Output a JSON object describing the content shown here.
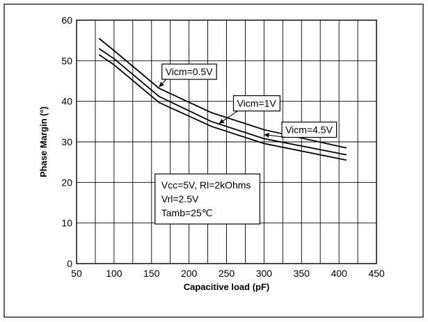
{
  "chart_data": {
    "type": "line",
    "xlabel": "Capacitive load (pF)",
    "ylabel": "Phase Margin (°)",
    "xlim": [
      50,
      450
    ],
    "ylim": [
      0,
      60
    ],
    "x_major_ticks": [
      50,
      100,
      150,
      200,
      250,
      300,
      350,
      400,
      450
    ],
    "y_major_ticks": [
      0,
      10,
      20,
      30,
      40,
      50,
      60
    ],
    "grid_x_step": 25,
    "grid_y_step": 10,
    "grid": true,
    "line_color": "#000000",
    "series": [
      {
        "name": "Vicm=0.5V",
        "points": [
          [
            80,
            55.5
          ],
          [
            100,
            52.5
          ],
          [
            160,
            43.2
          ],
          [
            230,
            37.2
          ],
          [
            300,
            33.0
          ],
          [
            410,
            28.5
          ]
        ],
        "label_anchor": [
          200,
          47.3
        ],
        "arrow_at": [
          160,
          43.5
        ]
      },
      {
        "name": "Vicm=1V",
        "points": [
          [
            80,
            53.0
          ],
          [
            100,
            50.5
          ],
          [
            160,
            41.2
          ],
          [
            230,
            35.0
          ],
          [
            300,
            30.8
          ],
          [
            410,
            26.8
          ]
        ],
        "label_anchor": [
          290,
          39.5
        ],
        "arrow_at": [
          240,
          34.5
        ]
      },
      {
        "name": "Vicm=4.5V",
        "points": [
          [
            80,
            51.5
          ],
          [
            100,
            49.0
          ],
          [
            160,
            39.7
          ],
          [
            230,
            33.8
          ],
          [
            300,
            29.6
          ],
          [
            410,
            25.5
          ]
        ],
        "label_anchor": [
          360,
          33.0
        ],
        "arrow_at": [
          300,
          31.8
        ]
      }
    ],
    "conditions": [
      "Vcc=5V, Rl=2kOhms",
      "Vrl=2.5V",
      "Tamb=25℃"
    ]
  }
}
